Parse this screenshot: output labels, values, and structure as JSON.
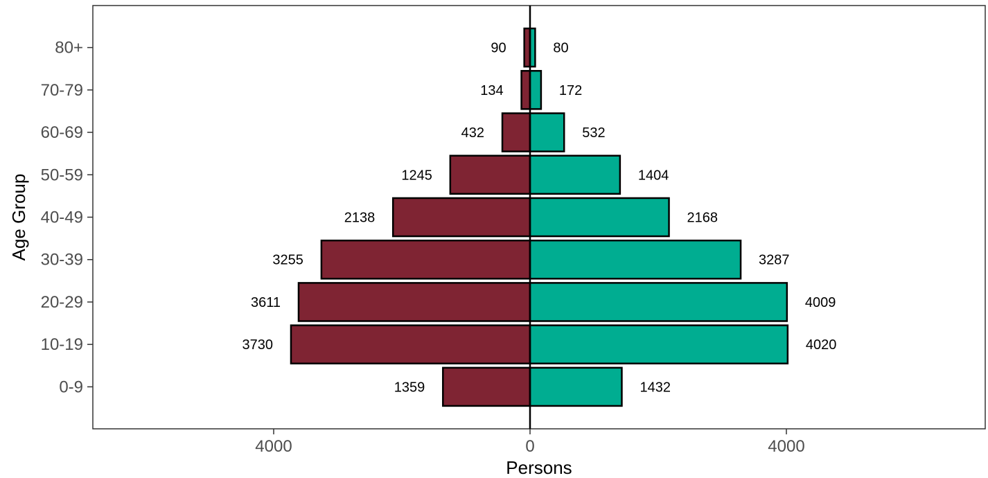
{
  "chart_data": {
    "type": "bar",
    "orientation": "horizontal-diverging",
    "title": "",
    "xlabel": "Persons",
    "ylabel": "Age Group",
    "categories": [
      "0-9",
      "10-19",
      "20-29",
      "30-39",
      "40-49",
      "50-59",
      "60-69",
      "70-79",
      "80+"
    ],
    "series": [
      {
        "side": "left",
        "color": "#7f2433",
        "values": [
          1359,
          3730,
          3611,
          3255,
          2138,
          1245,
          432,
          134,
          90
        ]
      },
      {
        "side": "right",
        "color": "#00ad91",
        "values": [
          1432,
          4020,
          4009,
          3287,
          2168,
          1404,
          532,
          172,
          80
        ]
      }
    ],
    "xlim": [
      -6800,
      7100
    ],
    "x_ticks": [
      {
        "value": -4000,
        "label": "4000"
      },
      {
        "value": 0,
        "label": "0"
      },
      {
        "value": 4000,
        "label": "4000"
      }
    ],
    "grid": false,
    "legend": "none"
  }
}
